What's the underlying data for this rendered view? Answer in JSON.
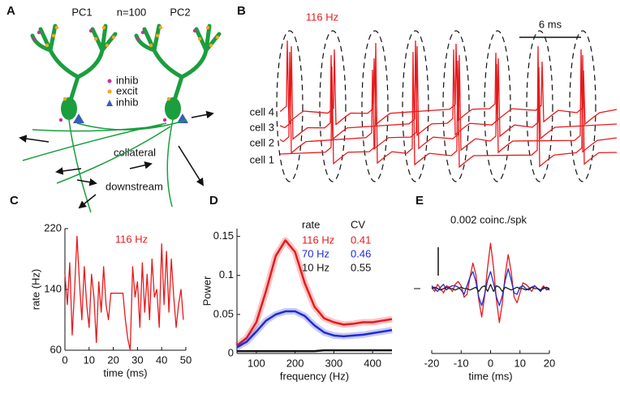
{
  "figure": {
    "a": {
      "label": "A",
      "pc1": "PC1",
      "n": "n=100",
      "pc2": "PC2",
      "legend": [
        "inhib",
        "excit",
        "inhib"
      ],
      "collateral": "collateral",
      "downstream": "downstream"
    },
    "b": {
      "label": "B",
      "rate": "116 Hz",
      "scalebar": "6 ms",
      "cells": [
        "cell 4",
        "cell 3",
        "cell 2",
        "cell 1"
      ]
    }
  },
  "chart_data": [
    {
      "panel": "C",
      "type": "line",
      "annotation": "116 Hz",
      "color": "#e8191b",
      "x": [
        0,
        1,
        2,
        3,
        4,
        5,
        6,
        7,
        8,
        9,
        10,
        11,
        12,
        13,
        14,
        15,
        16,
        17,
        18,
        19,
        20,
        21,
        22,
        23,
        24,
        25,
        26,
        27,
        28,
        29,
        30,
        31,
        32,
        33,
        34,
        35,
        36,
        37,
        38,
        39,
        40,
        41,
        42,
        43,
        44,
        45,
        46,
        47,
        48,
        49
      ],
      "values": [
        160,
        120,
        175,
        80,
        140,
        210,
        150,
        100,
        170,
        120,
        90,
        160,
        130,
        70,
        150,
        110,
        170,
        120,
        100,
        135,
        135,
        135,
        135,
        135,
        135,
        100,
        75,
        60,
        170,
        130,
        150,
        90,
        175,
        110,
        160,
        100,
        180,
        130,
        140,
        90,
        200,
        120,
        190,
        110,
        180,
        130,
        90,
        120,
        140,
        100
      ],
      "xlim": [
        0,
        50
      ],
      "ylim": [
        60,
        220
      ],
      "xticks": [
        0,
        10,
        20,
        30,
        40,
        50
      ],
      "yticks": [
        60,
        140,
        220
      ],
      "xlabel": "time (ms)",
      "ylabel": "rate (Hz)"
    },
    {
      "panel": "D",
      "type": "line",
      "x": [
        50,
        75,
        100,
        125,
        150,
        175,
        200,
        225,
        250,
        275,
        300,
        325,
        350,
        375,
        400,
        425,
        450
      ],
      "series": [
        {
          "name": "116 Hz",
          "color": "#e8191b",
          "cv": 0.41,
          "values": [
            0.01,
            0.02,
            0.04,
            0.08,
            0.125,
            0.145,
            0.13,
            0.09,
            0.06,
            0.045,
            0.04,
            0.037,
            0.038,
            0.04,
            0.04,
            0.042,
            0.044
          ]
        },
        {
          "name": "70 Hz",
          "color": "#1f2ad6",
          "cv": 0.46,
          "values": [
            0.008,
            0.015,
            0.028,
            0.042,
            0.05,
            0.054,
            0.054,
            0.048,
            0.036,
            0.027,
            0.023,
            0.022,
            0.023,
            0.024,
            0.026,
            0.028,
            0.03
          ]
        },
        {
          "name": "10 Hz",
          "color": "#111111",
          "cv": 0.55,
          "values": [
            0.003,
            0.003,
            0.003,
            0.003,
            0.003,
            0.003,
            0.003,
            0.003,
            0.003,
            0.004,
            0.004,
            0.004,
            0.004,
            0.004,
            0.004,
            0.004,
            0.004
          ]
        }
      ],
      "xlim": [
        50,
        450
      ],
      "ylim": [
        0,
        0.16
      ],
      "xticks": [
        100,
        200,
        300,
        400
      ],
      "yticks": [
        0,
        0.05,
        0.1,
        0.15
      ],
      "xlabel": "frequency (Hz)",
      "ylabel": "Power",
      "legend_header": [
        "rate",
        "CV"
      ]
    },
    {
      "panel": "E",
      "type": "line",
      "x": [
        -20,
        -19,
        -18,
        -17,
        -16,
        -15,
        -14,
        -13,
        -12,
        -11,
        -10,
        -9,
        -8,
        -7,
        -6,
        -5,
        -4,
        -3,
        -2,
        -1,
        0,
        1,
        2,
        3,
        4,
        5,
        6,
        7,
        8,
        9,
        10,
        11,
        12,
        13,
        14,
        15,
        16,
        17,
        18,
        19,
        20
      ],
      "series": [
        {
          "color": "#e8191b",
          "values": [
            0.0001,
            -0.0002,
            0.0003,
            0,
            -0.0003,
            0.0002,
            0.0001,
            -0.0002,
            0.0003,
            0.0005,
            0.0002,
            -0.0006,
            -0.0004,
            0.0008,
            0.0018,
            0.001,
            -0.0008,
            -0.002,
            -0.0005,
            0.0015,
            0.0032,
            0.0015,
            -0.0008,
            -0.0024,
            -0.001,
            0.001,
            0.0024,
            0.0012,
            -0.0006,
            -0.001,
            -0.0003,
            0.0004,
            0.0003,
            0.0001,
            -0.0002,
            0.0002,
            0,
            -0.0001,
            0.0002,
            -0.0001,
            0
          ]
        },
        {
          "color": "#1f2ad6",
          "values": [
            0.0002,
            0,
            -0.0002,
            0.0001,
            0.0003,
            -0.0001,
            0.0001,
            0.0002,
            0.0002,
            0.0001,
            -0.0001,
            -0.0004,
            0.0002,
            0.0008,
            0.0012,
            0.0005,
            -0.0006,
            -0.0012,
            -0.0004,
            0.0006,
            0.0012,
            0.0004,
            -0.0006,
            -0.0012,
            -0.0005,
            0.0006,
            0.0014,
            0.0006,
            -0.0003,
            -0.0004,
            0.0001,
            0.0002,
            0,
            -0.0001,
            0.0001,
            0.0002,
            0,
            -0.0002,
            0.0001,
            0,
            -0.0001
          ]
        },
        {
          "color": "#222222",
          "values": [
            0,
            0.0001,
            0,
            -0.0001,
            0,
            0.0001,
            0,
            0,
            -0.0001,
            0,
            0.0001,
            0,
            0,
            -0.0001,
            0,
            0.0001,
            -0.0002,
            0.0001,
            0.0002,
            -0.0002,
            0.0003,
            -0.0002,
            0.0002,
            0.0001,
            -0.0002,
            0.0001,
            0,
            -0.0001,
            0,
            0.0001,
            0,
            0,
            -0.0001,
            0,
            0.0001,
            0,
            0,
            -0.0001,
            0,
            0.0001,
            0
          ]
        }
      ],
      "xlim": [
        -20,
        20
      ],
      "xticks": [
        -20,
        -10,
        0,
        10,
        20
      ],
      "xlabel": "time (ms)",
      "scalebar": {
        "value": 0.002,
        "label": "0.002 coinc./spk"
      }
    }
  ]
}
